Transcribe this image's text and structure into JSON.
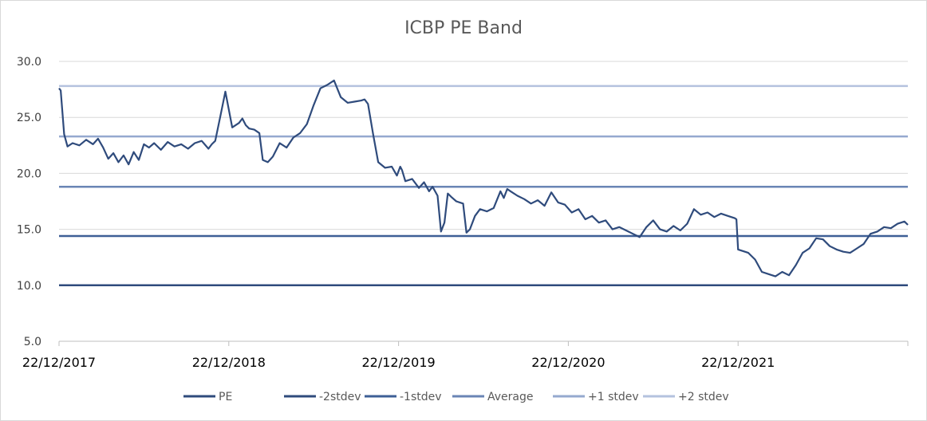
{
  "chart_data": {
    "type": "line",
    "title": "ICBP PE Band",
    "xlabel": "",
    "ylabel": "",
    "ylim": [
      5.0,
      30.0
    ],
    "yticks": [
      "30.0",
      "25.0",
      "20.0",
      "15.0",
      "10.0",
      "5.0"
    ],
    "ytick_values": [
      30,
      25,
      20,
      15,
      10,
      5
    ],
    "xrange": [
      0,
      5
    ],
    "xtick_labels": [
      "22/12/2017",
      "22/12/2018",
      "22/12/2019",
      "22/12/2020",
      "22/12/2021"
    ],
    "xtick_values": [
      0,
      1,
      2,
      3,
      4
    ],
    "grid": true,
    "legend_position": "bottom",
    "colors": {
      "pe": "#2f4b7c",
      "minus2": "#2f4b7c",
      "minus1": "#3e5f96",
      "average": "#6a85b5",
      "plus1": "#95a9cf",
      "plus2": "#b4c2de",
      "grid": "#d9d9d9",
      "axis": "#bfbfbf"
    },
    "bands": [
      {
        "key": "minus2",
        "name": "-2stdev",
        "value": 10.0
      },
      {
        "key": "minus1",
        "name": "-1stdev",
        "value": 14.4
      },
      {
        "key": "average",
        "name": "Average",
        "value": 18.8
      },
      {
        "key": "plus1",
        "name": "+1 stdev",
        "value": 23.3
      },
      {
        "key": "plus2",
        "name": "+2 stdev",
        "value": 27.8
      }
    ],
    "legend": [
      "PE",
      "-2stdev",
      "-1stdev",
      "Average",
      "+1 stdev",
      "+2 stdev"
    ],
    "series": [
      {
        "name": "PE",
        "x": [
          0,
          0.01,
          0.03,
          0.05,
          0.08,
          0.12,
          0.16,
          0.2,
          0.23,
          0.26,
          0.29,
          0.32,
          0.35,
          0.38,
          0.41,
          0.44,
          0.47,
          0.5,
          0.53,
          0.56,
          0.6,
          0.64,
          0.68,
          0.72,
          0.76,
          0.8,
          0.84,
          0.88,
          0.9,
          0.92,
          0.95,
          0.98,
          1.02,
          1.06,
          1.08,
          1.1,
          1.12,
          1.15,
          1.18,
          1.2,
          1.23,
          1.26,
          1.3,
          1.34,
          1.38,
          1.42,
          1.46,
          1.5,
          1.54,
          1.58,
          1.62,
          1.66,
          1.7,
          1.74,
          1.78,
          1.8,
          1.82,
          1.85,
          1.88,
          1.92,
          1.96,
          1.99,
          2.01,
          2.02,
          2.04,
          2.08,
          2.12,
          2.15,
          2.18,
          2.2,
          2.23,
          2.25,
          2.27,
          2.29,
          2.31,
          2.34,
          2.38,
          2.4,
          2.42,
          2.45,
          2.48,
          2.52,
          2.56,
          2.6,
          2.62,
          2.64,
          2.66,
          2.7,
          2.74,
          2.78,
          2.82,
          2.86,
          2.9,
          2.94,
          2.98,
          3.02,
          3.06,
          3.1,
          3.14,
          3.18,
          3.22,
          3.26,
          3.3,
          3.34,
          3.38,
          3.42,
          3.46,
          3.5,
          3.54,
          3.58,
          3.62,
          3.66,
          3.7,
          3.74,
          3.78,
          3.82,
          3.86,
          3.9,
          3.94,
          3.98,
          3.99,
          4.0,
          4.02,
          4.06,
          4.1,
          4.14,
          4.18,
          4.22,
          4.26,
          4.3,
          4.34,
          4.38,
          4.42,
          4.46,
          4.5,
          4.54,
          4.58,
          4.62,
          4.66,
          4.7,
          4.74,
          4.78,
          4.82,
          4.86,
          4.9,
          4.94,
          4.98,
          5.0
        ],
        "values": [
          27.6,
          27.4,
          23.5,
          22.4,
          22.7,
          22.5,
          23.0,
          22.6,
          23.1,
          22.3,
          21.3,
          21.8,
          21.0,
          21.6,
          20.8,
          21.9,
          21.2,
          22.6,
          22.3,
          22.7,
          22.1,
          22.8,
          22.4,
          22.6,
          22.2,
          22.7,
          22.9,
          22.2,
          22.6,
          22.9,
          25.1,
          27.3,
          24.1,
          24.5,
          24.9,
          24.3,
          24.0,
          23.9,
          23.6,
          21.2,
          21.0,
          21.5,
          22.7,
          22.3,
          23.2,
          23.6,
          24.4,
          26.1,
          27.6,
          27.9,
          28.3,
          26.8,
          26.3,
          26.4,
          26.5,
          26.6,
          26.2,
          23.5,
          21.0,
          20.5,
          20.6,
          19.8,
          20.6,
          20.3,
          19.3,
          19.5,
          18.7,
          19.2,
          18.4,
          18.8,
          18.0,
          14.8,
          15.6,
          18.2,
          17.9,
          17.5,
          17.3,
          14.7,
          15.0,
          16.2,
          16.8,
          16.6,
          16.9,
          18.4,
          17.8,
          18.6,
          18.4,
          18.0,
          17.7,
          17.3,
          17.6,
          17.1,
          18.3,
          17.4,
          17.2,
          16.5,
          16.8,
          15.9,
          16.2,
          15.6,
          15.8,
          15.0,
          15.2,
          14.9,
          14.6,
          14.3,
          15.2,
          15.8,
          15.0,
          14.8,
          15.3,
          14.9,
          15.5,
          16.8,
          16.3,
          16.5,
          16.1,
          16.4,
          16.2,
          16.0,
          15.9,
          13.2,
          13.1,
          12.9,
          12.3,
          11.2,
          11.0,
          10.8,
          11.2,
          10.9,
          11.8,
          12.9,
          13.3,
          14.2,
          14.1,
          13.5,
          13.2,
          13.0,
          12.9,
          13.3,
          13.7,
          14.6,
          14.8,
          15.2,
          15.1,
          15.5,
          15.7,
          15.4
        ]
      }
    ]
  }
}
